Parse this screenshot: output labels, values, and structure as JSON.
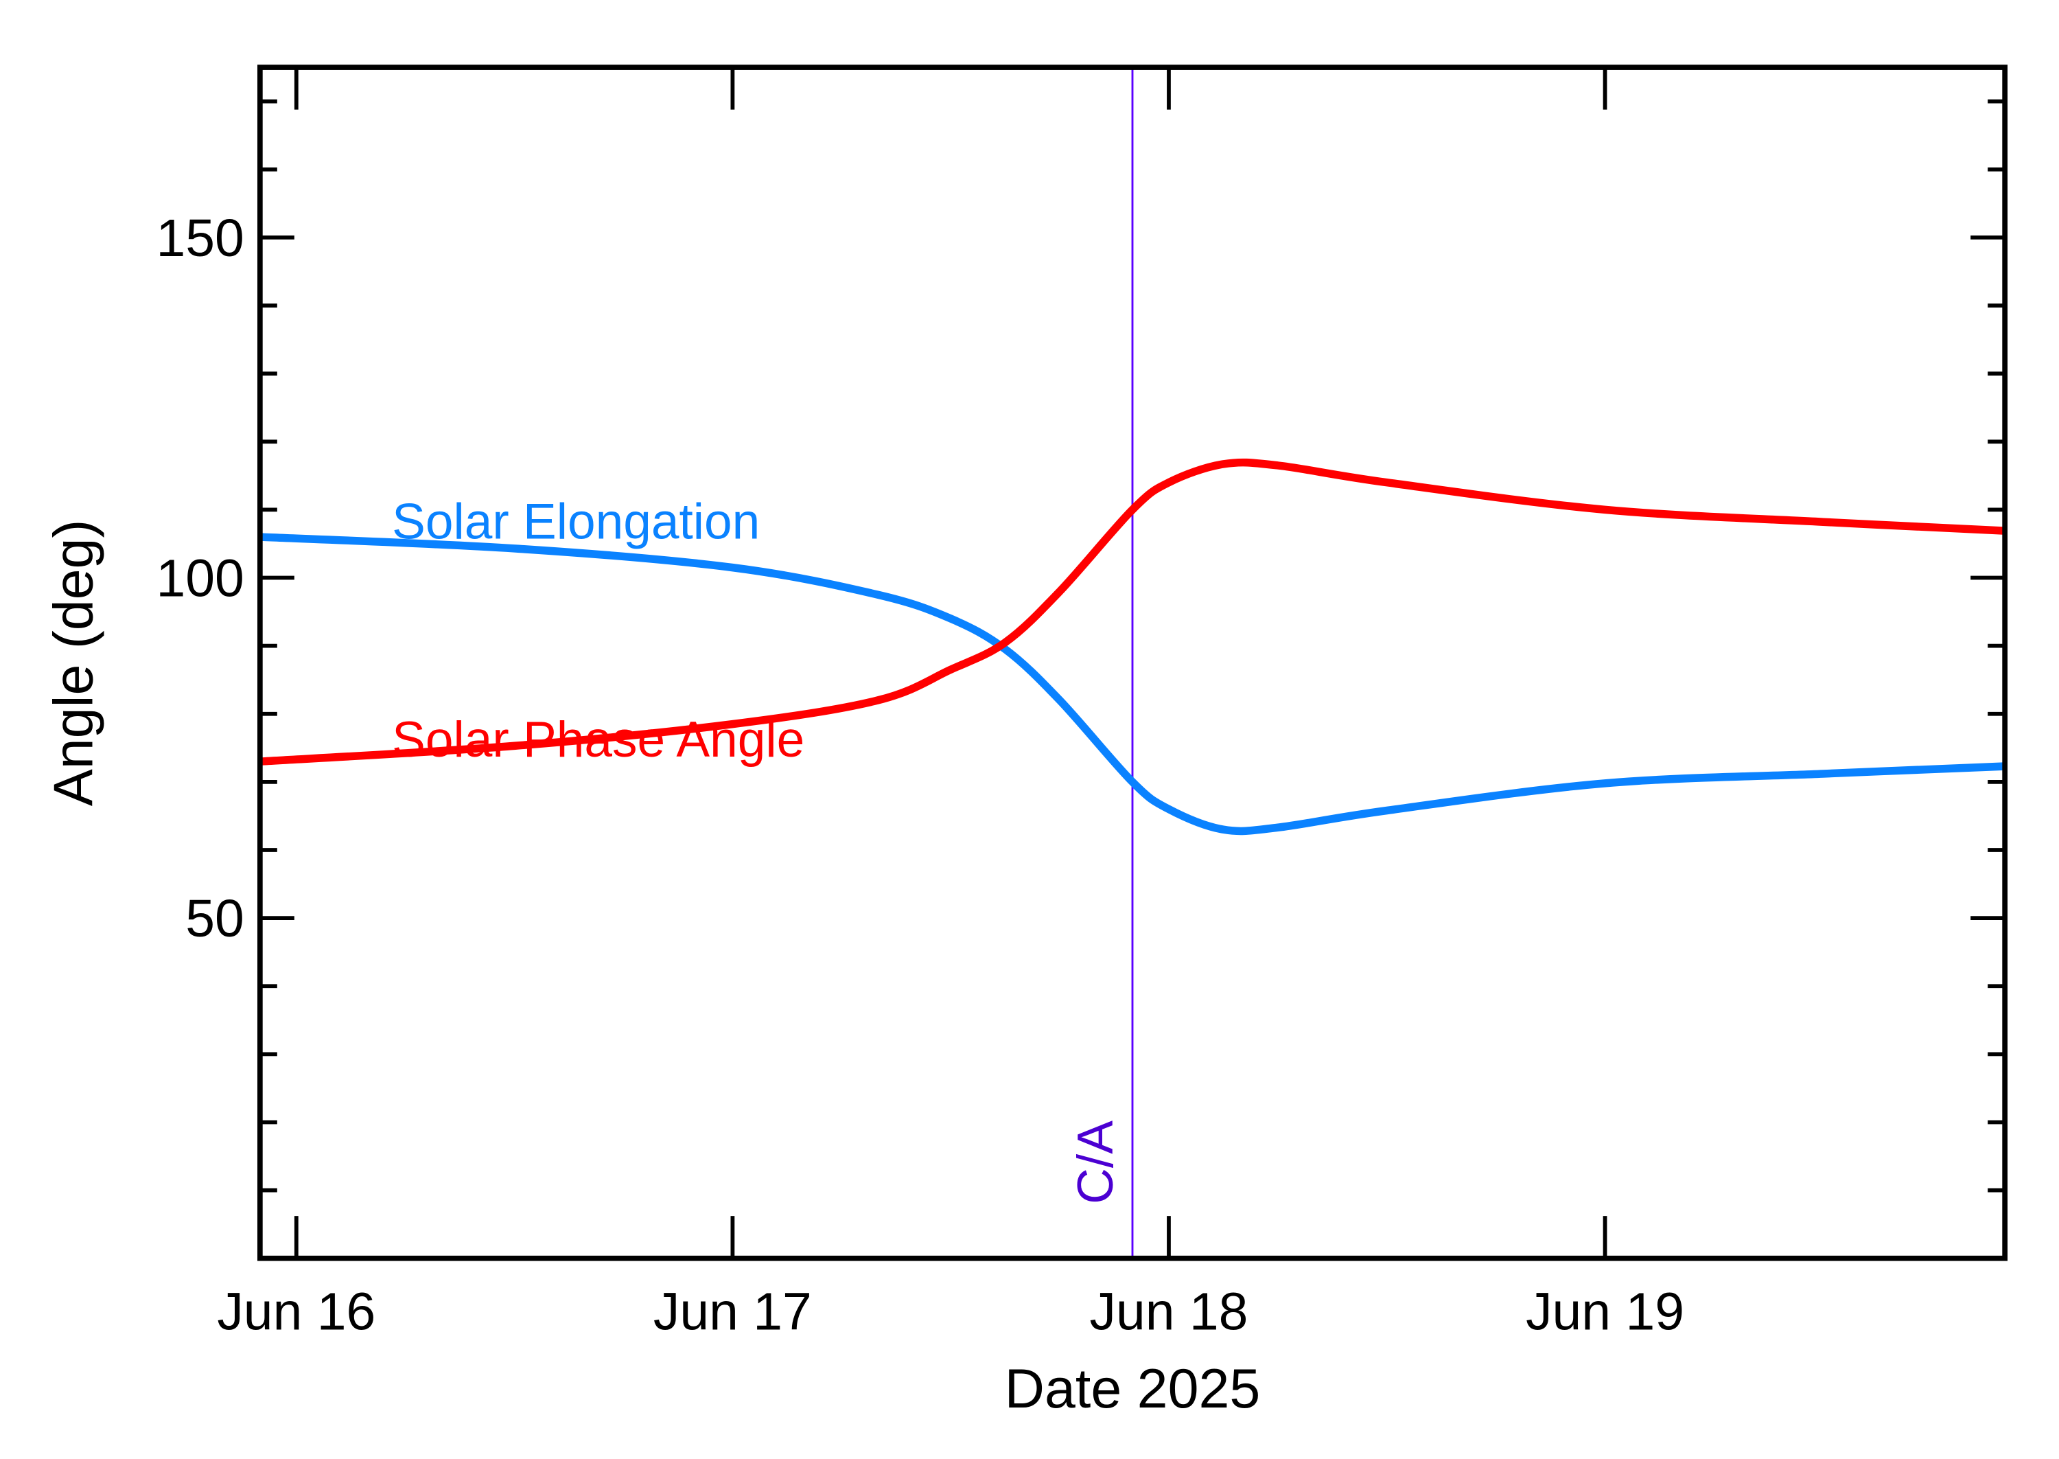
{
  "chart_data": {
    "type": "line",
    "title": "",
    "xlabel": "Date 2025",
    "ylabel": "Angle (deg)",
    "xlim": [
      "2025-06-15T22:00",
      "2025-06-19T22:00"
    ],
    "ylim": [
      0,
      175
    ],
    "x_ticks": [
      {
        "date": "2025-06-16T00:00",
        "label": "Jun 16"
      },
      {
        "date": "2025-06-17T00:00",
        "label": "Jun 17"
      },
      {
        "date": "2025-06-18T00:00",
        "label": "Jun 18"
      },
      {
        "date": "2025-06-19T00:00",
        "label": "Jun 19"
      }
    ],
    "y_ticks": [
      {
        "value": 50,
        "label": "50"
      },
      {
        "value": 100,
        "label": "100"
      },
      {
        "value": 150,
        "label": "150"
      }
    ],
    "y_minor_step": 10,
    "x_minor_step_hours": 6,
    "grid": false,
    "closest_approach": {
      "date": "2025-06-17T22:00",
      "label": "C/A",
      "color": "#4B00D2"
    },
    "x": [
      "2025-06-15T22:00",
      "2025-06-16T12:00",
      "2025-06-17T00:00",
      "2025-06-17T08:00",
      "2025-06-17T12:00",
      "2025-06-17T15:00",
      "2025-06-17T18:00",
      "2025-06-17T22:00",
      "2025-06-18T00:00",
      "2025-06-18T03:00",
      "2025-06-18T06:00",
      "2025-06-18T12:00",
      "2025-06-19T00:00",
      "2025-06-19T12:00",
      "2025-06-19T22:00"
    ],
    "series": [
      {
        "name": "Solar Elongation",
        "color": "#0A82FF",
        "values": [
          106,
          104.3,
          101.5,
          97.5,
          94,
          89.5,
          82,
          70,
          66,
          63,
          63.3,
          65.8,
          69.8,
          71.2,
          72.3
        ]
      },
      {
        "name": "Solar Phase Angle",
        "color": "#FF0000",
        "values": [
          73,
          75.3,
          78.5,
          82,
          86.5,
          90.5,
          98,
          110,
          114,
          116.7,
          116.5,
          114,
          110,
          108.2,
          106.9
        ]
      }
    ]
  }
}
